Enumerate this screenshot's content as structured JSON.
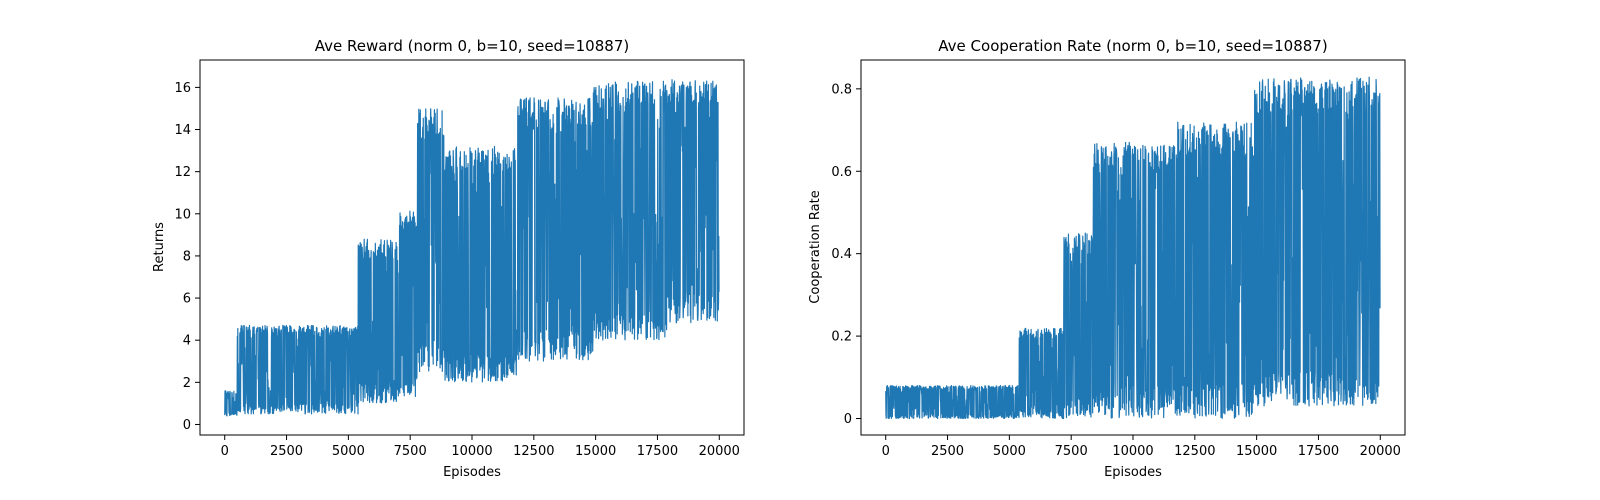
{
  "chart_data": [
    {
      "type": "line",
      "title": "Ave Reward (norm 0, b=10, seed=10887)",
      "xlabel": "Episodes",
      "ylabel": "Returns",
      "xlim": [
        -1000,
        21000
      ],
      "ylim": [
        -0.5,
        17.3
      ],
      "xticks": [
        0,
        2500,
        5000,
        7500,
        10000,
        12500,
        15000,
        17500,
        20000
      ],
      "yticks": [
        0,
        2,
        4,
        6,
        8,
        10,
        12,
        14,
        16
      ],
      "grid": false,
      "color": "#1f77b4",
      "segments": [
        {
          "x0": 0,
          "x1": 500,
          "low": 0.4,
          "high": 1.6
        },
        {
          "x0": 500,
          "x1": 5400,
          "low": 0.5,
          "high": 4.7
        },
        {
          "x0": 5400,
          "x1": 7000,
          "low": 1.0,
          "high": 8.8
        },
        {
          "x0": 7000,
          "x1": 7800,
          "low": 1.3,
          "high": 10.2
        },
        {
          "x0": 7800,
          "x1": 8900,
          "low": 2.5,
          "high": 15.0
        },
        {
          "x0": 8900,
          "x1": 11800,
          "low": 2.0,
          "high": 13.2
        },
        {
          "x0": 11800,
          "x1": 14900,
          "low": 3.0,
          "high": 15.5
        },
        {
          "x0": 14900,
          "x1": 17900,
          "low": 4.0,
          "high": 16.3
        },
        {
          "x0": 17900,
          "x1": 20000,
          "low": 4.8,
          "high": 16.4
        }
      ]
    },
    {
      "type": "line",
      "title": "Ave Cooperation Rate (norm 0, b=10, seed=10887)",
      "xlabel": "Episodes",
      "ylabel": "Cooperation Rate",
      "xlim": [
        -1000,
        21000
      ],
      "ylim": [
        -0.04,
        0.87
      ],
      "xticks": [
        0,
        2500,
        5000,
        7500,
        10000,
        12500,
        15000,
        17500,
        20000
      ],
      "yticks": [
        0.0,
        0.2,
        0.4,
        0.6,
        0.8
      ],
      "grid": false,
      "color": "#1f77b4",
      "segments": [
        {
          "x0": 0,
          "x1": 5400,
          "low": 0.0,
          "high": 0.08
        },
        {
          "x0": 5400,
          "x1": 7200,
          "low": 0.0,
          "high": 0.22
        },
        {
          "x0": 7200,
          "x1": 8400,
          "low": 0.0,
          "high": 0.45
        },
        {
          "x0": 8400,
          "x1": 11800,
          "low": 0.0,
          "high": 0.67
        },
        {
          "x0": 11800,
          "x1": 14900,
          "low": 0.0,
          "high": 0.72
        },
        {
          "x0": 14900,
          "x1": 20000,
          "low": 0.03,
          "high": 0.83
        }
      ]
    }
  ]
}
